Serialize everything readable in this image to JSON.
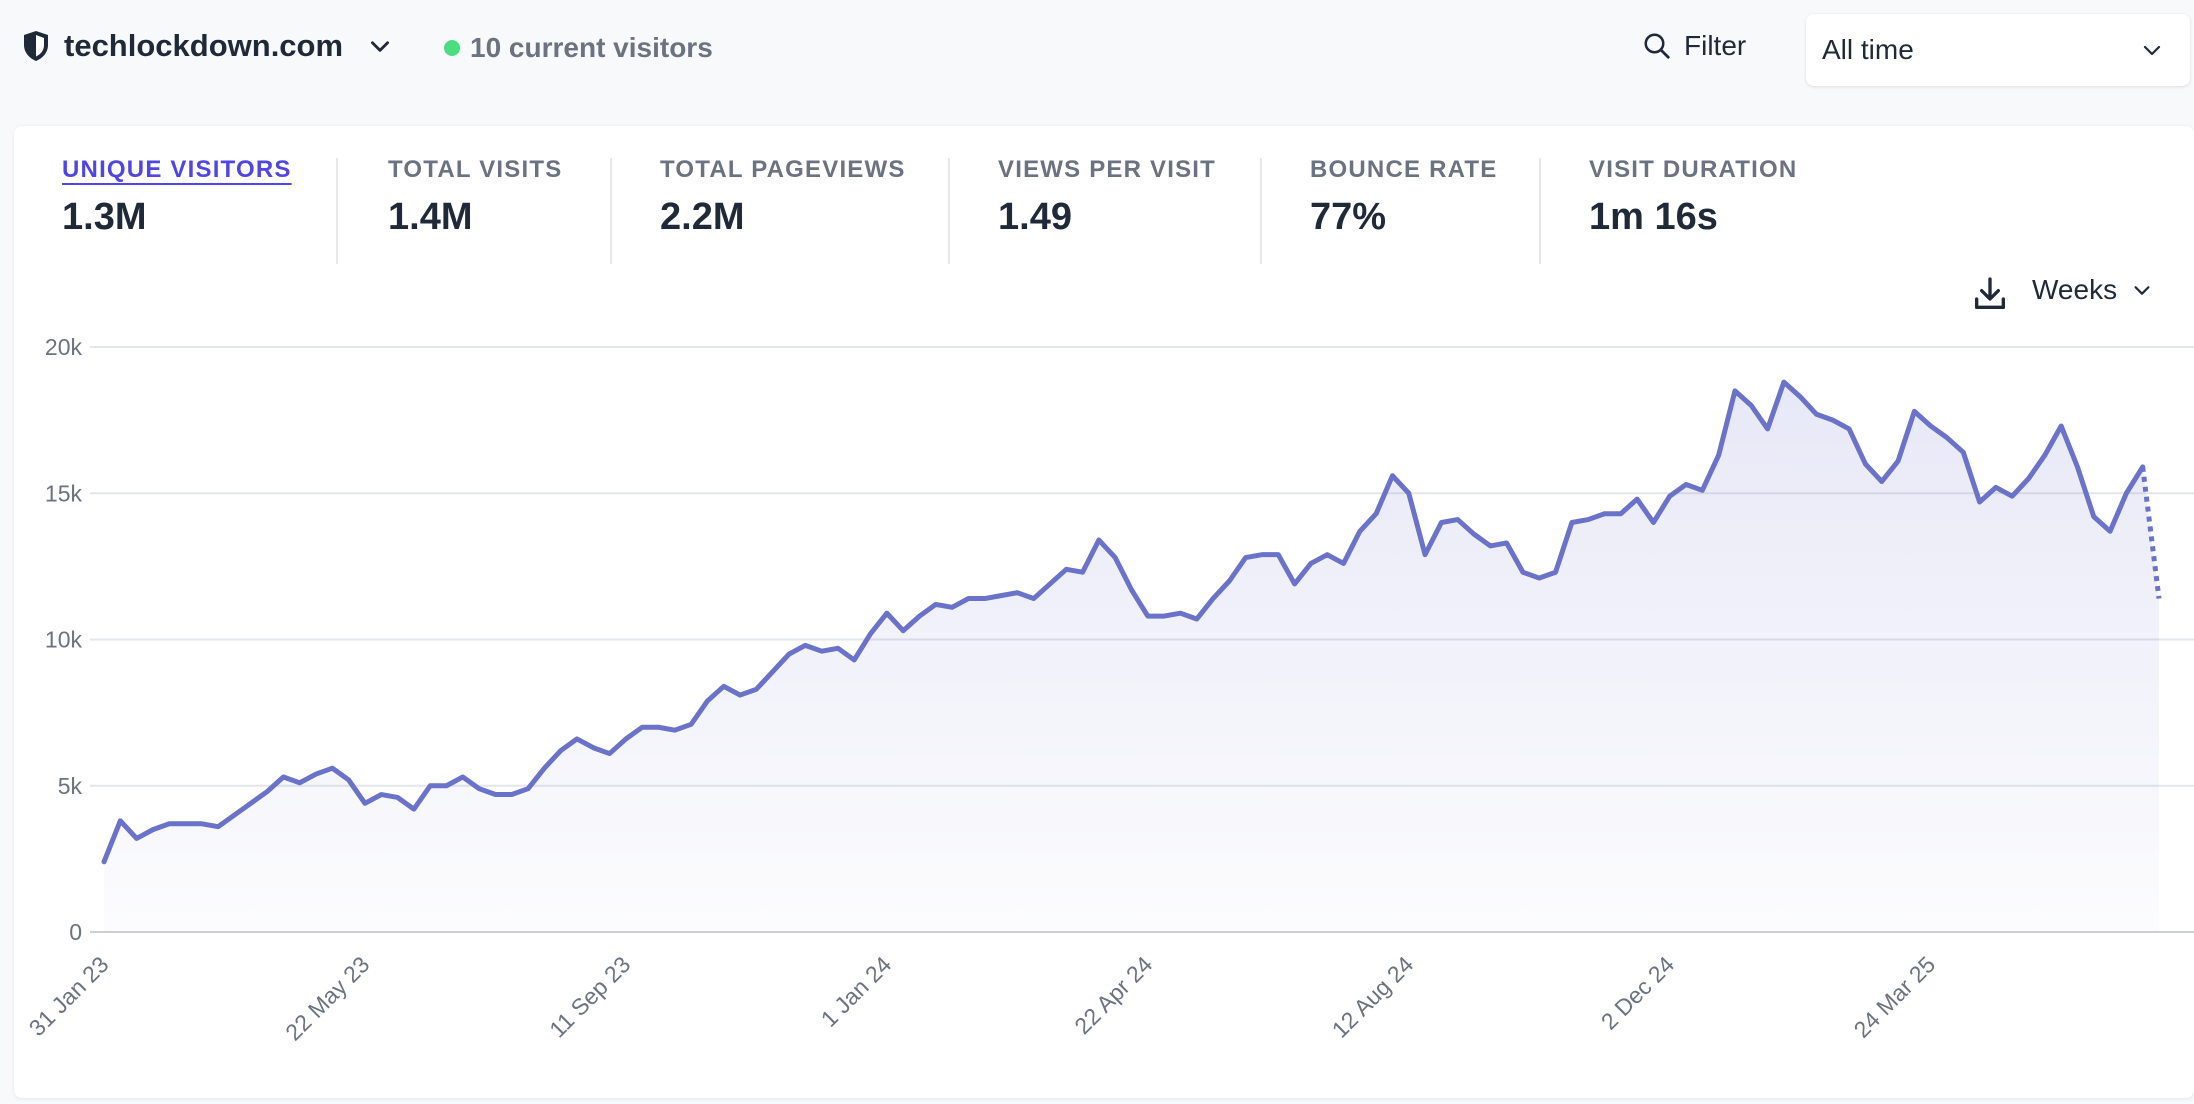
{
  "header": {
    "site_name": "techlockdown.com",
    "current_visitors": "10 current visitors",
    "filter_label": "Filter",
    "period_label": "All time"
  },
  "metrics": [
    {
      "label": "UNIQUE VISITORS",
      "value": "1.3M"
    },
    {
      "label": "TOTAL VISITS",
      "value": "1.4M"
    },
    {
      "label": "TOTAL PAGEVIEWS",
      "value": "2.2M"
    },
    {
      "label": "VIEWS PER VISIT",
      "value": "1.49"
    },
    {
      "label": "BOUNCE RATE",
      "value": "77%"
    },
    {
      "label": "VISIT DURATION",
      "value": "1m 16s"
    }
  ],
  "interval_label": "Weeks",
  "colors": {
    "accent": "#4f46e5",
    "line": "#6b72c9",
    "live_dot": "#4ade80"
  },
  "chart_data": {
    "type": "line",
    "title": "",
    "xlabel": "",
    "ylabel": "",
    "ylim": [
      0,
      20000
    ],
    "y_ticks": [
      0,
      5000,
      10000,
      15000,
      20000
    ],
    "y_tick_labels": [
      "0",
      "5k",
      "10k",
      "15k",
      "20k"
    ],
    "x_tick_labels": [
      "31 Jan 23",
      "22 May 23",
      "11 Sep 23",
      "1 Jan 24",
      "22 Apr 24",
      "12 Aug 24",
      "2 Dec 24",
      "24 Mar 25"
    ],
    "x_tick_indices": [
      0,
      16,
      32,
      48,
      64,
      80,
      96,
      112
    ],
    "incomplete_last_point": true,
    "series": [
      {
        "name": "Unique visitors",
        "values": [
          2400,
          3800,
          3200,
          3500,
          3700,
          3700,
          3700,
          3600,
          4000,
          4400,
          4800,
          5300,
          5100,
          5400,
          5600,
          5200,
          4400,
          4700,
          4600,
          4200,
          5000,
          5000,
          5300,
          4900,
          4700,
          4700,
          4900,
          5600,
          6200,
          6600,
          6300,
          6100,
          6600,
          7000,
          7000,
          6900,
          7100,
          7900,
          8400,
          8100,
          8300,
          8900,
          9500,
          9800,
          9600,
          9700,
          9300,
          10200,
          10900,
          10300,
          10800,
          11200,
          11100,
          11400,
          11400,
          11500,
          11600,
          11400,
          11900,
          12400,
          12300,
          13400,
          12800,
          11700,
          10800,
          10800,
          10900,
          10700,
          11400,
          12000,
          12800,
          12900,
          12900,
          11900,
          12600,
          12900,
          12600,
          13700,
          14300,
          15600,
          15000,
          12900,
          14000,
          14100,
          13600,
          13200,
          13300,
          12300,
          12100,
          12300,
          14000,
          14100,
          14300,
          14300,
          14800,
          14000,
          14900,
          15300,
          15100,
          16300,
          18500,
          18000,
          17200,
          18800,
          18300,
          17700,
          17500,
          17200,
          16000,
          15400,
          16100,
          17800,
          17300,
          16900,
          16400,
          14700,
          15200,
          14900,
          15500,
          16300,
          17300,
          15900,
          14200,
          13700,
          15000,
          15900,
          11400
        ]
      }
    ]
  }
}
